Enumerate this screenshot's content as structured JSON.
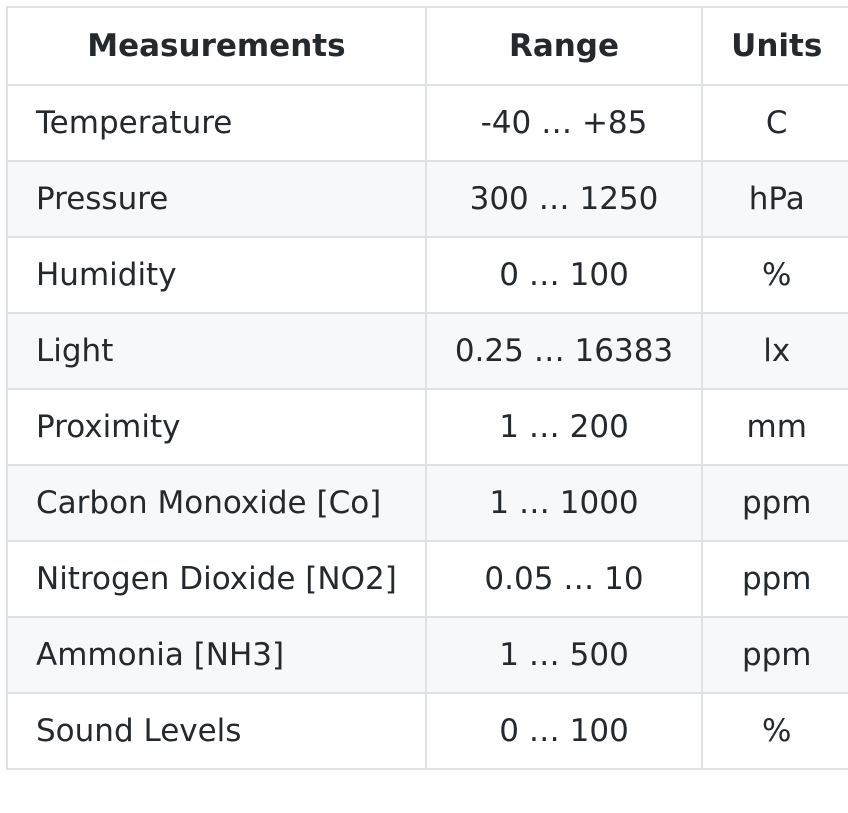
{
  "table": {
    "headers": [
      "Measurements",
      "Range",
      "Units"
    ],
    "rows": [
      [
        "Temperature",
        "-40 … +85",
        "C"
      ],
      [
        "Pressure",
        "300 … 1250",
        "hPa"
      ],
      [
        "Humidity",
        "0 … 100",
        "%"
      ],
      [
        "Light",
        "0.25 … 16383",
        "lx"
      ],
      [
        "Proximity",
        "1 … 200",
        "mm"
      ],
      [
        "Carbon Monoxide [Co]",
        "1 … 1000",
        "ppm"
      ],
      [
        "Nitrogen Dioxide [NO2]",
        "0.05 … 10",
        "ppm"
      ],
      [
        "Ammonia [NH3]",
        "1 … 500",
        "ppm"
      ],
      [
        "Sound Levels",
        "0 … 100",
        "%"
      ]
    ]
  }
}
